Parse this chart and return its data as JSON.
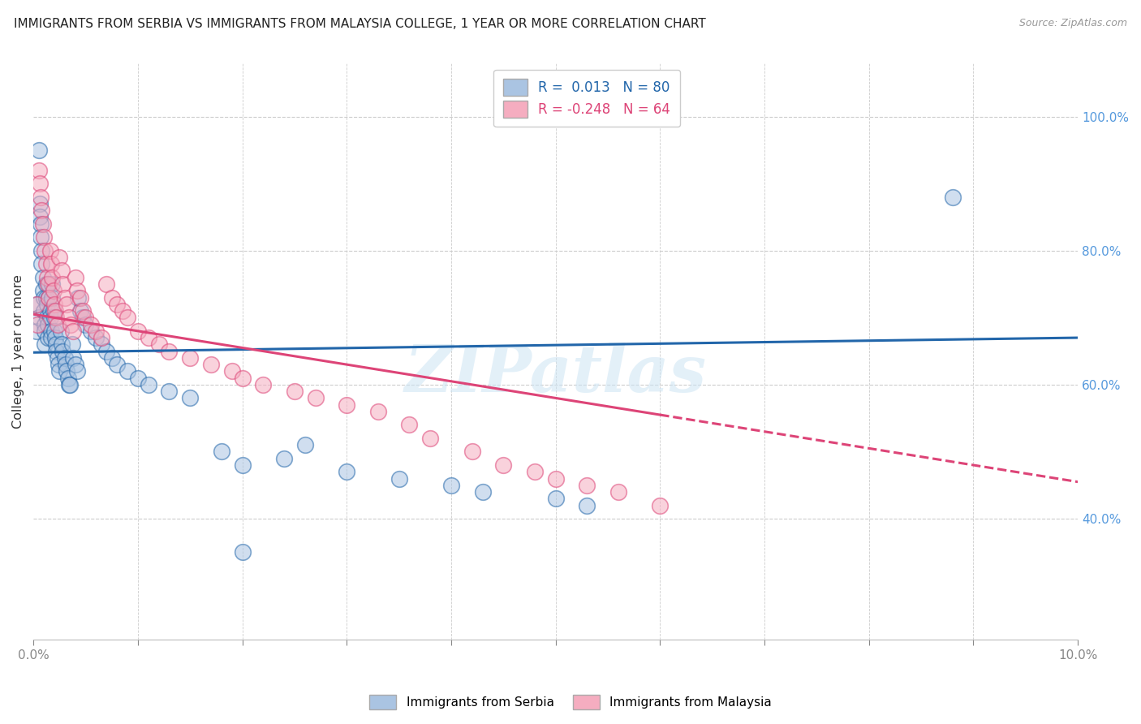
{
  "title": "IMMIGRANTS FROM SERBIA VS IMMIGRANTS FROM MALAYSIA COLLEGE, 1 YEAR OR MORE CORRELATION CHART",
  "source": "Source: ZipAtlas.com",
  "ylabel": "College, 1 year or more",
  "xlim": [
    0.0,
    0.1
  ],
  "ylim": [
    0.22,
    1.08
  ],
  "yticks_right": [
    0.4,
    0.6,
    0.8,
    1.0
  ],
  "ytick_labels_right": [
    "40.0%",
    "60.0%",
    "80.0%",
    "100.0%"
  ],
  "serbia_color": "#aac4e2",
  "malaysia_color": "#f5adc0",
  "serbia_line_color": "#2266aa",
  "malaysia_line_color": "#dd4477",
  "watermark": "ZIPatlas",
  "serbia_intercept": 0.648,
  "serbia_slope": 0.22,
  "malaysia_intercept": 0.705,
  "malaysia_slope": -2.5,
  "serbia_x": [
    0.0003,
    0.0004,
    0.0005,
    0.0005,
    0.0006,
    0.0006,
    0.0007,
    0.0007,
    0.0008,
    0.0008,
    0.0009,
    0.0009,
    0.001,
    0.001,
    0.0011,
    0.0011,
    0.0011,
    0.0012,
    0.0012,
    0.0013,
    0.0013,
    0.0014,
    0.0014,
    0.0015,
    0.0015,
    0.0016,
    0.0016,
    0.0017,
    0.0017,
    0.0018,
    0.0018,
    0.0019,
    0.002,
    0.002,
    0.0021,
    0.0022,
    0.0022,
    0.0023,
    0.0024,
    0.0025,
    0.0026,
    0.0027,
    0.0028,
    0.003,
    0.0031,
    0.0032,
    0.0033,
    0.0034,
    0.0035,
    0.0037,
    0.0038,
    0.004,
    0.0042,
    0.0043,
    0.0045,
    0.0047,
    0.005,
    0.0055,
    0.006,
    0.0065,
    0.007,
    0.0075,
    0.008,
    0.009,
    0.01,
    0.011,
    0.013,
    0.015,
    0.018,
    0.02,
    0.024,
    0.026,
    0.03,
    0.035,
    0.04,
    0.043,
    0.05,
    0.053,
    0.02,
    0.088
  ],
  "serbia_y": [
    0.68,
    0.72,
    0.7,
    0.95,
    0.87,
    0.85,
    0.84,
    0.82,
    0.8,
    0.78,
    0.76,
    0.74,
    0.73,
    0.71,
    0.69,
    0.68,
    0.66,
    0.75,
    0.73,
    0.72,
    0.7,
    0.69,
    0.67,
    0.75,
    0.73,
    0.71,
    0.7,
    0.68,
    0.67,
    0.75,
    0.73,
    0.71,
    0.7,
    0.68,
    0.67,
    0.66,
    0.65,
    0.64,
    0.63,
    0.62,
    0.68,
    0.66,
    0.65,
    0.64,
    0.63,
    0.62,
    0.61,
    0.6,
    0.6,
    0.66,
    0.64,
    0.63,
    0.62,
    0.73,
    0.71,
    0.7,
    0.69,
    0.68,
    0.67,
    0.66,
    0.65,
    0.64,
    0.63,
    0.62,
    0.61,
    0.6,
    0.59,
    0.58,
    0.5,
    0.48,
    0.49,
    0.51,
    0.47,
    0.46,
    0.45,
    0.44,
    0.43,
    0.42,
    0.35,
    0.88
  ],
  "malaysia_x": [
    0.0003,
    0.0004,
    0.0005,
    0.0006,
    0.0007,
    0.0008,
    0.0009,
    0.001,
    0.0011,
    0.0012,
    0.0013,
    0.0014,
    0.0015,
    0.0016,
    0.0017,
    0.0018,
    0.0019,
    0.002,
    0.0021,
    0.0022,
    0.0023,
    0.0025,
    0.0027,
    0.0028,
    0.003,
    0.0032,
    0.0034,
    0.0036,
    0.0038,
    0.004,
    0.0042,
    0.0045,
    0.0047,
    0.005,
    0.0055,
    0.006,
    0.0065,
    0.007,
    0.0075,
    0.008,
    0.0085,
    0.009,
    0.01,
    0.011,
    0.012,
    0.013,
    0.015,
    0.017,
    0.019,
    0.02,
    0.022,
    0.025,
    0.027,
    0.03,
    0.033,
    0.036,
    0.038,
    0.042,
    0.045,
    0.048,
    0.05,
    0.053,
    0.056,
    0.06
  ],
  "malaysia_y": [
    0.72,
    0.69,
    0.92,
    0.9,
    0.88,
    0.86,
    0.84,
    0.82,
    0.8,
    0.78,
    0.76,
    0.75,
    0.73,
    0.8,
    0.78,
    0.76,
    0.74,
    0.72,
    0.71,
    0.7,
    0.69,
    0.79,
    0.77,
    0.75,
    0.73,
    0.72,
    0.7,
    0.69,
    0.68,
    0.76,
    0.74,
    0.73,
    0.71,
    0.7,
    0.69,
    0.68,
    0.67,
    0.75,
    0.73,
    0.72,
    0.71,
    0.7,
    0.68,
    0.67,
    0.66,
    0.65,
    0.64,
    0.63,
    0.62,
    0.61,
    0.6,
    0.59,
    0.58,
    0.57,
    0.56,
    0.54,
    0.52,
    0.5,
    0.48,
    0.47,
    0.46,
    0.45,
    0.44,
    0.42
  ]
}
